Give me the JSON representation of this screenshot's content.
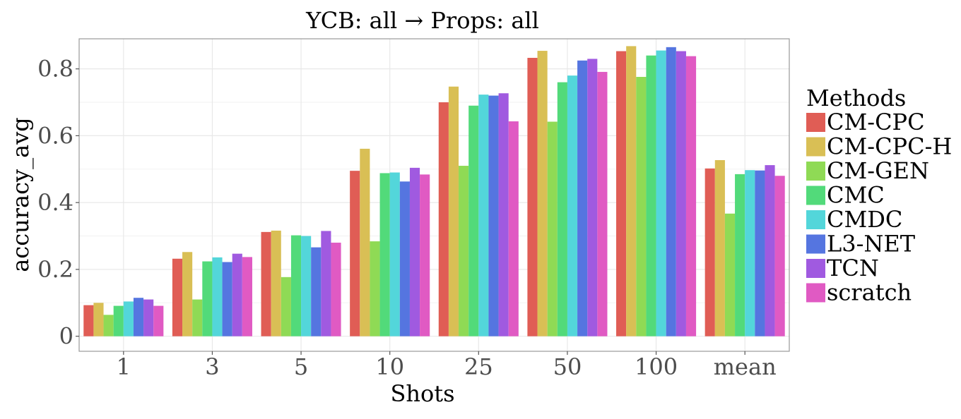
{
  "chart_data": {
    "type": "bar",
    "title": "YCB: all → Props: all",
    "xlabel": "Shots",
    "ylabel": "accuracy_avg",
    "ylim": [
      -0.045,
      0.89
    ],
    "yticks": [
      0,
      0.2,
      0.4,
      0.6,
      0.8
    ],
    "ytick_labels": [
      "0",
      "0.2",
      "0.4",
      "0.6",
      "0.8"
    ],
    "grid": true,
    "legend_position": "right",
    "legend_title": "Methods",
    "categories": [
      "1",
      "3",
      "5",
      "10",
      "25",
      "50",
      "100",
      "mean"
    ],
    "series": [
      {
        "name": "CM-CPC",
        "color": "#E05D55",
        "values": [
          0.093,
          0.232,
          0.312,
          0.495,
          0.7,
          0.833,
          0.853,
          0.502
        ]
      },
      {
        "name": "CM-CPC-H",
        "color": "#D9BF55",
        "values": [
          0.1,
          0.252,
          0.316,
          0.561,
          0.747,
          0.854,
          0.868,
          0.527
        ]
      },
      {
        "name": "CM-GEN",
        "color": "#8FDA55",
        "values": [
          0.064,
          0.11,
          0.177,
          0.284,
          0.51,
          0.642,
          0.776,
          0.367
        ]
      },
      {
        "name": "CMC",
        "color": "#52DA7A",
        "values": [
          0.091,
          0.224,
          0.302,
          0.488,
          0.69,
          0.76,
          0.84,
          0.485
        ]
      },
      {
        "name": "CMDC",
        "color": "#53D6DA",
        "values": [
          0.104,
          0.236,
          0.3,
          0.49,
          0.723,
          0.78,
          0.855,
          0.497
        ]
      },
      {
        "name": "L3-NET",
        "color": "#5575E0",
        "values": [
          0.115,
          0.222,
          0.266,
          0.463,
          0.72,
          0.825,
          0.865,
          0.496
        ]
      },
      {
        "name": "TCN",
        "color": "#A05AE0",
        "values": [
          0.11,
          0.247,
          0.315,
          0.504,
          0.727,
          0.83,
          0.853,
          0.512
        ]
      },
      {
        "name": "scratch",
        "color": "#E05AC3",
        "values": [
          0.091,
          0.237,
          0.28,
          0.484,
          0.643,
          0.791,
          0.838,
          0.48
        ]
      }
    ]
  }
}
